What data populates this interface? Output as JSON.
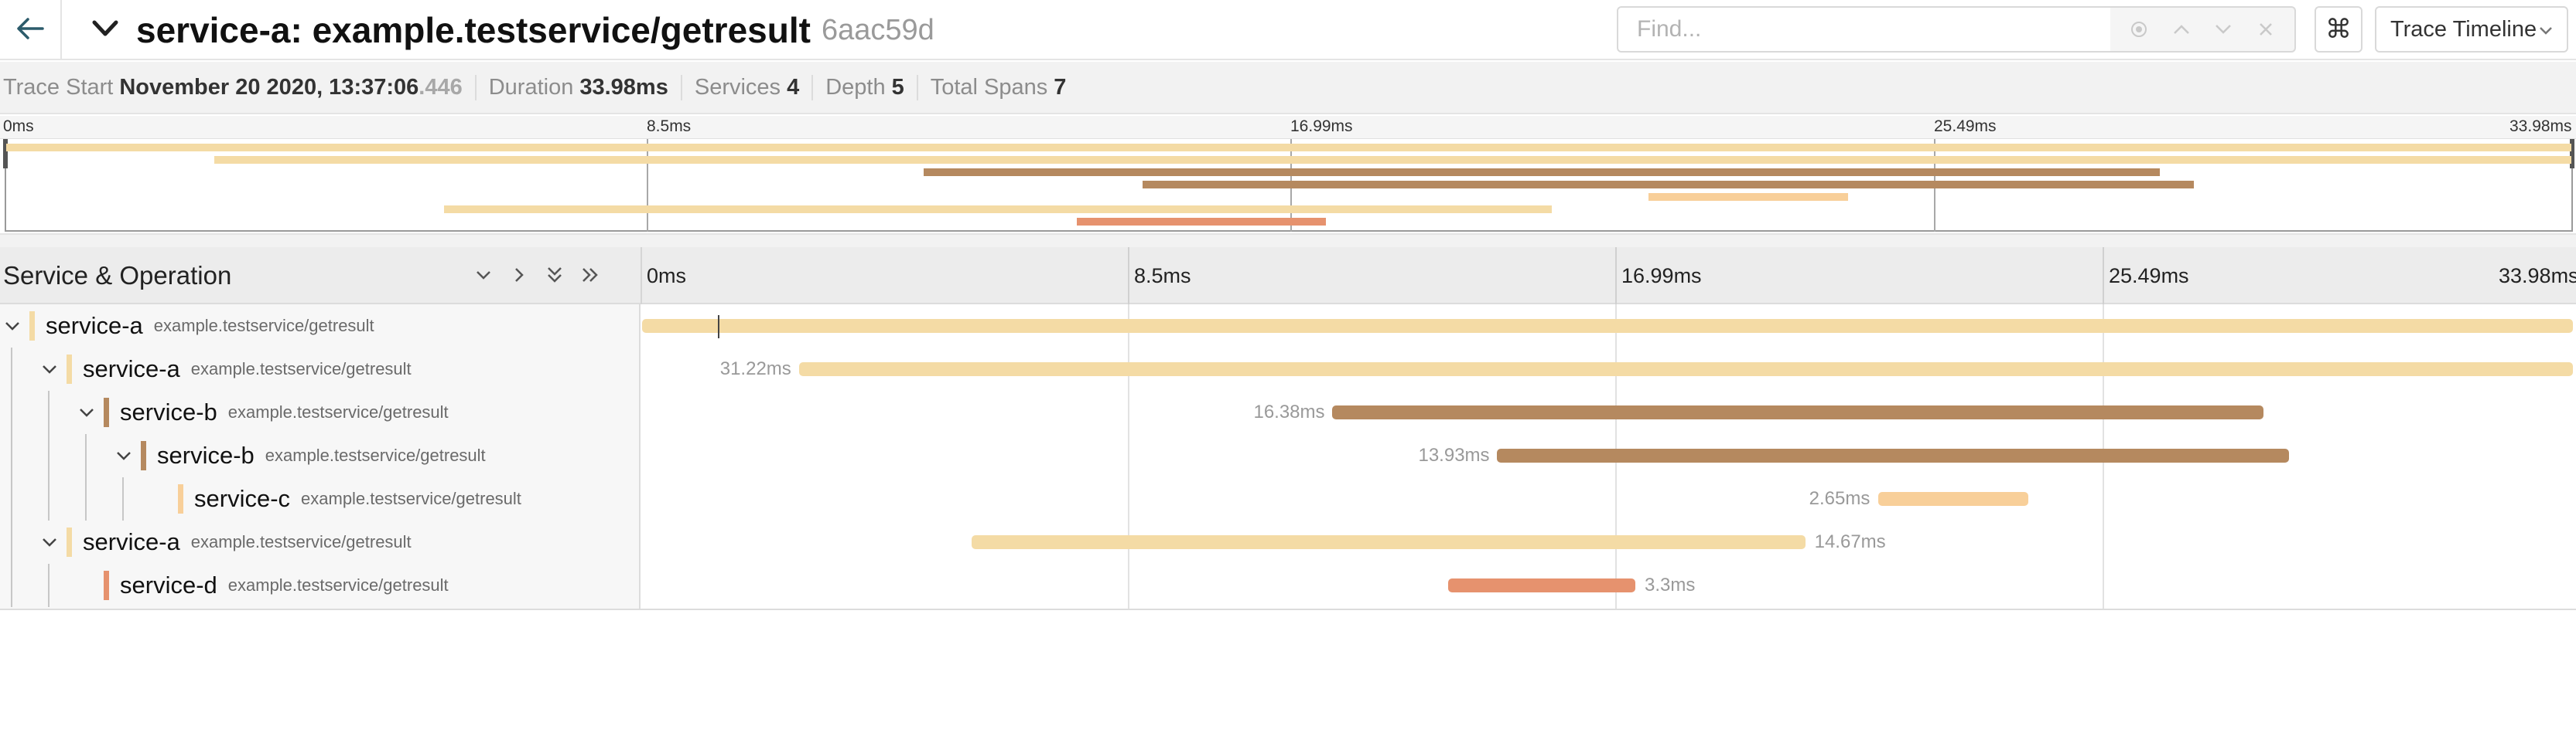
{
  "header": {
    "title": "service-a: example.testservice/getresult",
    "trace_id": "6aac59d",
    "find_placeholder": "Find...",
    "keyboard_icon": "⌘",
    "view_select": "Trace Timeline"
  },
  "summary": {
    "trace_start_label": "Trace Start",
    "trace_start_value": "November 20 2020, 13:37:06",
    "trace_start_ms": ".446",
    "duration_label": "Duration",
    "duration_value": "33.98ms",
    "services_label": "Services",
    "services_value": "4",
    "depth_label": "Depth",
    "depth_value": "5",
    "total_spans_label": "Total Spans",
    "total_spans_value": "7"
  },
  "ticks": [
    "0ms",
    "8.5ms",
    "16.99ms",
    "25.49ms",
    "33.98ms"
  ],
  "timeline_header": {
    "title": "Service & Operation"
  },
  "colors": {
    "service-a": "#f4dba5",
    "service-b": "#b5895f",
    "service-c": "#f8cf99",
    "service-d": "#e6926e"
  },
  "spans": [
    {
      "service": "service-a",
      "operation": "example.testservice/getresult",
      "depth": 0,
      "start_ms": 0.0,
      "duration_ms": 33.98,
      "duration_label": "",
      "collapsible": true
    },
    {
      "service": "service-a",
      "operation": "example.testservice/getresult",
      "depth": 1,
      "start_ms": 2.76,
      "duration_ms": 31.22,
      "duration_label": "31.22ms",
      "collapsible": true
    },
    {
      "service": "service-b",
      "operation": "example.testservice/getresult",
      "depth": 2,
      "start_ms": 12.15,
      "duration_ms": 16.38,
      "duration_label": "16.38ms",
      "collapsible": true
    },
    {
      "service": "service-b",
      "operation": "example.testservice/getresult",
      "depth": 3,
      "start_ms": 15.05,
      "duration_ms": 13.93,
      "duration_label": "13.93ms",
      "collapsible": true
    },
    {
      "service": "service-c",
      "operation": "example.testservice/getresult",
      "depth": 4,
      "start_ms": 21.75,
      "duration_ms": 2.65,
      "duration_label": "2.65ms",
      "collapsible": false
    },
    {
      "service": "service-a",
      "operation": "example.testservice/getresult",
      "depth": 1,
      "start_ms": 5.8,
      "duration_ms": 14.67,
      "duration_label": "14.67ms",
      "collapsible": true
    },
    {
      "service": "service-d",
      "operation": "example.testservice/getresult",
      "depth": 2,
      "start_ms": 14.18,
      "duration_ms": 3.3,
      "duration_label": "3.3ms",
      "collapsible": false
    }
  ],
  "minimap_spans": [
    {
      "service": "service-a",
      "start_ms": 0.0,
      "duration_ms": 33.98
    },
    {
      "service": "service-a",
      "start_ms": 2.76,
      "duration_ms": 31.22
    },
    {
      "service": "service-b",
      "start_ms": 12.15,
      "duration_ms": 16.38
    },
    {
      "service": "service-b",
      "start_ms": 15.05,
      "duration_ms": 13.93
    },
    {
      "service": "service-c",
      "start_ms": 21.75,
      "duration_ms": 2.65
    },
    {
      "service": "service-a",
      "start_ms": 5.8,
      "duration_ms": 14.67
    },
    {
      "service": "service-d",
      "start_ms": 14.18,
      "duration_ms": 3.3
    }
  ],
  "total_duration_ms": 33.98
}
